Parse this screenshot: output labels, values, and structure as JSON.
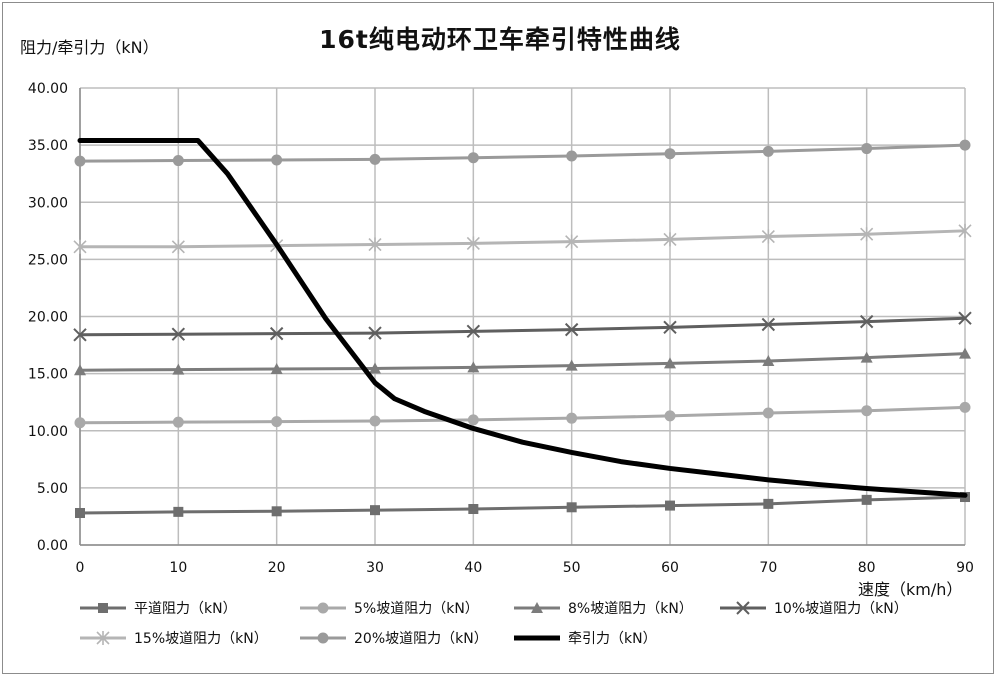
{
  "chart_data": {
    "type": "line",
    "title": "16t纯电动环卫车牵引特性曲线",
    "ylabel": "阻力/牵引力（kN）",
    "xlabel": "速度（km/h）",
    "xlim": [
      0,
      90
    ],
    "ylim": [
      0,
      40
    ],
    "x_ticks": [
      "0",
      "10",
      "20",
      "30",
      "40",
      "50",
      "60",
      "70",
      "80",
      "90"
    ],
    "y_ticks": [
      "0.00",
      "5.00",
      "10.00",
      "15.00",
      "20.00",
      "25.00",
      "30.00",
      "35.00",
      "40.00"
    ],
    "grid": true,
    "legend_position": "bottom",
    "series": [
      {
        "name": "平道阻力（kN）",
        "marker": "square",
        "color": "#6e6e6e",
        "x": [
          0,
          10,
          20,
          30,
          40,
          50,
          60,
          70,
          80,
          90
        ],
        "values": [
          2.8,
          2.9,
          2.95,
          3.05,
          3.15,
          3.3,
          3.45,
          3.6,
          3.95,
          4.2
        ]
      },
      {
        "name": "5%坡道阻力（kN）",
        "marker": "circle",
        "color": "#a9a9a9",
        "x": [
          0,
          10,
          20,
          30,
          40,
          50,
          60,
          70,
          80,
          90
        ],
        "values": [
          10.7,
          10.75,
          10.8,
          10.85,
          10.95,
          11.1,
          11.3,
          11.55,
          11.75,
          12.05
        ]
      },
      {
        "name": "8%坡道阻力（kN）",
        "marker": "triangle",
        "color": "#7c7c7c",
        "x": [
          0,
          10,
          20,
          30,
          40,
          50,
          60,
          70,
          80,
          90
        ],
        "values": [
          15.3,
          15.35,
          15.4,
          15.45,
          15.55,
          15.7,
          15.9,
          16.1,
          16.4,
          16.75
        ]
      },
      {
        "name": "10%坡道阻力（kN）",
        "marker": "x",
        "color": "#5f5f5f",
        "x": [
          0,
          10,
          20,
          30,
          40,
          50,
          60,
          70,
          80,
          90
        ],
        "values": [
          18.4,
          18.45,
          18.5,
          18.55,
          18.7,
          18.85,
          19.05,
          19.3,
          19.55,
          19.85
        ]
      },
      {
        "name": "15%坡道阻力（kN）",
        "marker": "star",
        "color": "#b5b5b5",
        "x": [
          0,
          10,
          20,
          30,
          40,
          50,
          60,
          70,
          80,
          90
        ],
        "values": [
          26.1,
          26.1,
          26.2,
          26.3,
          26.4,
          26.55,
          26.75,
          27.0,
          27.2,
          27.5
        ]
      },
      {
        "name": "20%坡道阻力（kN）",
        "marker": "circle",
        "color": "#9a9a9a",
        "x": [
          0,
          10,
          20,
          30,
          40,
          50,
          60,
          70,
          80,
          90
        ],
        "values": [
          33.6,
          33.65,
          33.7,
          33.75,
          33.9,
          34.05,
          34.25,
          34.45,
          34.7,
          35.0
        ]
      },
      {
        "name": "牵引力（kN）",
        "marker": "none",
        "color": "#000000",
        "x": [
          0,
          5,
          10,
          12,
          15,
          20,
          25,
          30,
          32,
          35,
          40,
          45,
          50,
          55,
          60,
          65,
          70,
          75,
          80,
          85,
          90
        ],
        "values": [
          35.4,
          35.4,
          35.4,
          35.4,
          32.5,
          26.3,
          19.8,
          14.2,
          12.8,
          11.7,
          10.2,
          9.0,
          8.1,
          7.3,
          6.7,
          6.2,
          5.7,
          5.3,
          4.95,
          4.65,
          4.35
        ]
      }
    ]
  }
}
